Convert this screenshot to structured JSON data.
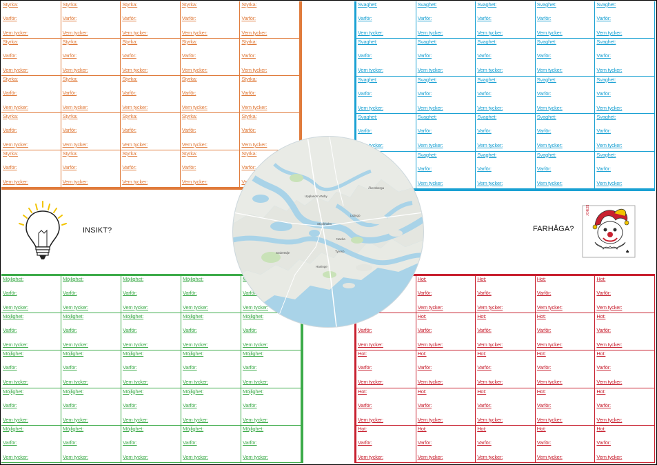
{
  "strengths": {
    "color": "#e07b3b",
    "rows": 5,
    "cols": 5,
    "line1": "Styrka:",
    "line2": "Varför:",
    "line3": "Vem tycker:"
  },
  "weaknesses": {
    "color": "#1aa1d3",
    "rows": 5,
    "cols": 5,
    "line1": "Svaghet:",
    "line2": "Varför:",
    "line3": "Vem tycker:"
  },
  "opportunities": {
    "color": "#3dab4a",
    "rows": 5,
    "cols": 5,
    "line1": "Möjlighet:",
    "line2": "Varför:",
    "line3": "Vem tycker:"
  },
  "threats": {
    "color": "#c8202f",
    "rows": 5,
    "cols": 5,
    "line1": "Hot:",
    "line2": "Varför:",
    "line3": "Vem tycker:"
  },
  "insight": {
    "label": "INSIKT?",
    "icon": "lightbulb-icon"
  },
  "fear": {
    "label": "FARHÅGA?",
    "icon": "jester-card-icon"
  },
  "map": {
    "places": [
      "Stockholm",
      "Södertälje",
      "Lidingö",
      "Nacka",
      "Haninge",
      "Tyresö",
      "Upplands Väsby",
      "Åkersberga"
    ]
  }
}
